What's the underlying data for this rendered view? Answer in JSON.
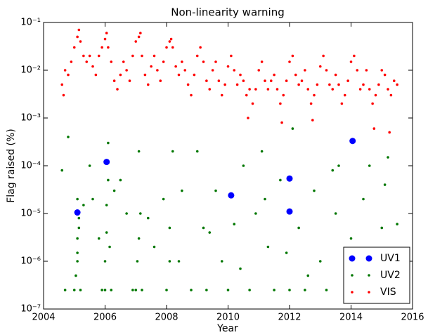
{
  "chart_data": {
    "type": "scatter",
    "title": "Non-linearity warning",
    "x_label": "Year",
    "y_label": "Flag raised (%)",
    "xlim": [
      2004,
      2016
    ],
    "xticks": [
      2004,
      2006,
      2008,
      2010,
      2012,
      2014,
      2016
    ],
    "ylim": [
      1e-07,
      0.1
    ],
    "log_y": true,
    "yticks": [
      {
        "value": 1e-07,
        "label": "10⁻⁷"
      },
      {
        "value": 1e-06,
        "label": "10⁻⁶"
      },
      {
        "value": 1e-05,
        "label": "10⁻⁵"
      },
      {
        "value": 0.0001,
        "label": "10⁻⁴"
      },
      {
        "value": 0.001,
        "label": "10⁻³"
      },
      {
        "value": 0.01,
        "label": "10⁻²"
      },
      {
        "value": 0.1,
        "label": "10⁻¹"
      }
    ],
    "legend": "lower right",
    "series": [
      {
        "name": "UV1",
        "color": "#0000ff",
        "marker_size": 4.5,
        "x": [
          2005.1,
          2006.05,
          2010.1,
          2012.0,
          2012.0,
          2014.05
        ],
        "values": [
          1.05e-05,
          0.00012,
          2.4e-05,
          5.4e-05,
          1.1e-05,
          0.00033
        ]
      },
      {
        "name": "UV2",
        "color": "#007700",
        "marker_size": 1.8,
        "x": [
          2004.6,
          2004.7,
          2004.8,
          2005.0,
          2005.05,
          2005.1,
          2005.1,
          2005.15,
          2005.1,
          2005.2,
          2005.1,
          2005.15,
          2005.5,
          2005.6,
          2005.8,
          2005.9,
          2006.0,
          2006.0,
          2006.05,
          2006.05,
          2006.1,
          2006.1,
          2006.15,
          2006.2,
          2006.5,
          2006.7,
          2006.9,
          2007.0,
          2007.05,
          2007.1,
          2007.1,
          2007.15,
          2007.2,
          2007.6,
          2007.9,
          2008.0,
          2008.1,
          2008.1,
          2008.2,
          2008.5,
          2008.8,
          2009.0,
          2009.2,
          2009.3,
          2009.6,
          2009.8,
          2010.0,
          2010.2,
          2010.5,
          2010.7,
          2010.9,
          2011.1,
          2011.3,
          2011.5,
          2011.7,
          2011.9,
          2012.0,
          2012.1,
          2012.3,
          2012.5,
          2012.8,
          2013.0,
          2013.2,
          2013.4,
          2013.6,
          2013.8,
          2014.0,
          2014.2,
          2014.4,
          2014.6,
          2014.8,
          2015.0,
          2015.2,
          2015.4,
          2015.5,
          2005.3,
          2006.3,
          2007.4,
          2008.4,
          2009.4,
          2010.4,
          2011.2,
          2012.6,
          2013.5,
          2014.5,
          2015.1
        ],
        "values": [
          8e-05,
          2.5e-07,
          0.0004,
          2.5e-07,
          5e-07,
          1e-06,
          3e-06,
          5e-06,
          2e-05,
          2.5e-07,
          1.5e-06,
          8e-06,
          0.0001,
          2e-05,
          3e-06,
          2.5e-07,
          2.5e-07,
          1e-06,
          4e-06,
          1.5e-05,
          5e-05,
          0.0003,
          2e-06,
          2.5e-07,
          5e-05,
          1e-05,
          2.5e-07,
          2.5e-07,
          1e-06,
          3e-06,
          0.0002,
          1e-05,
          2.5e-07,
          2e-06,
          2e-05,
          2.5e-07,
          1e-06,
          5e-06,
          0.0002,
          3e-05,
          2.5e-07,
          0.0002,
          5e-06,
          2.5e-07,
          3e-05,
          1e-06,
          2.5e-07,
          6e-06,
          0.0001,
          2.5e-07,
          1e-05,
          0.0002,
          2e-06,
          2.5e-07,
          5e-05,
          1.5e-06,
          2.5e-07,
          0.0006,
          5e-06,
          2.5e-07,
          3e-05,
          1e-06,
          2.5e-07,
          8e-05,
          0.0001,
          2.5e-07,
          3e-06,
          2.5e-07,
          2e-05,
          0.0001,
          2.5e-07,
          5e-06,
          0.00015,
          1e-06,
          6e-06,
          1.5e-05,
          3e-05,
          8e-06,
          1e-06,
          4e-06,
          7e-07,
          2e-05,
          5e-07,
          1e-05,
          7e-07,
          4e-05
        ]
      },
      {
        "name": "VIS",
        "color": "#ff0000",
        "marker_size": 1.8,
        "x": [
          2004.6,
          2004.7,
          2004.8,
          2004.9,
          2005.0,
          2005.1,
          2005.2,
          2005.3,
          2005.4,
          2005.5,
          2005.6,
          2005.7,
          2005.8,
          2005.9,
          2006.0,
          2006.1,
          2006.2,
          2006.3,
          2006.4,
          2006.5,
          2006.6,
          2006.7,
          2006.8,
          2006.9,
          2007.0,
          2007.1,
          2007.2,
          2007.3,
          2007.4,
          2007.5,
          2007.6,
          2007.7,
          2007.8,
          2007.9,
          2008.0,
          2008.1,
          2008.2,
          2008.3,
          2008.4,
          2008.5,
          2008.6,
          2008.7,
          2008.8,
          2008.9,
          2009.0,
          2009.1,
          2009.2,
          2009.3,
          2009.4,
          2009.5,
          2009.6,
          2009.7,
          2009.8,
          2009.9,
          2010.0,
          2010.1,
          2010.2,
          2010.3,
          2010.4,
          2010.5,
          2010.6,
          2010.7,
          2010.8,
          2010.9,
          2011.0,
          2011.1,
          2011.2,
          2011.3,
          2011.4,
          2011.5,
          2011.6,
          2011.7,
          2011.8,
          2011.9,
          2012.0,
          2012.1,
          2012.2,
          2012.3,
          2012.4,
          2012.5,
          2012.6,
          2012.7,
          2012.8,
          2012.9,
          2013.0,
          2013.1,
          2013.2,
          2013.3,
          2013.4,
          2013.5,
          2013.6,
          2013.7,
          2013.8,
          2013.9,
          2014.0,
          2014.1,
          2014.2,
          2014.3,
          2014.4,
          2014.5,
          2014.6,
          2014.7,
          2014.8,
          2014.9,
          2015.0,
          2015.1,
          2015.2,
          2015.3,
          2015.4,
          2015.5,
          2004.65,
          2005.15,
          2006.05,
          2007.15,
          2008.15,
          2010.65,
          2011.75,
          2012.75,
          2014.75,
          2015.25
        ],
        "values": [
          0.005,
          0.01,
          0.008,
          0.015,
          0.03,
          0.05,
          0.04,
          0.02,
          0.015,
          0.02,
          0.012,
          0.008,
          0.02,
          0.03,
          0.045,
          0.03,
          0.015,
          0.006,
          0.004,
          0.008,
          0.015,
          0.01,
          0.006,
          0.02,
          0.04,
          0.05,
          0.02,
          0.008,
          0.005,
          0.012,
          0.02,
          0.01,
          0.006,
          0.015,
          0.03,
          0.04,
          0.03,
          0.012,
          0.008,
          0.015,
          0.01,
          0.005,
          0.003,
          0.008,
          0.02,
          0.03,
          0.015,
          0.006,
          0.004,
          0.01,
          0.015,
          0.006,
          0.003,
          0.005,
          0.012,
          0.02,
          0.01,
          0.005,
          0.008,
          0.006,
          0.003,
          0.004,
          0.002,
          0.004,
          0.01,
          0.015,
          0.006,
          0.004,
          0.006,
          0.008,
          0.004,
          0.002,
          0.003,
          0.006,
          0.015,
          0.02,
          0.008,
          0.005,
          0.006,
          0.01,
          0.004,
          0.002,
          0.003,
          0.005,
          0.012,
          0.02,
          0.01,
          0.005,
          0.004,
          0.008,
          0.005,
          0.002,
          0.003,
          0.006,
          0.015,
          0.02,
          0.01,
          0.004,
          0.005,
          0.01,
          0.004,
          0.002,
          0.003,
          0.005,
          0.01,
          0.008,
          0.004,
          0.003,
          0.006,
          0.005,
          0.003,
          0.07,
          0.06,
          0.06,
          0.045,
          0.001,
          0.0008,
          0.0009,
          0.0006,
          0.0005
        ]
      }
    ]
  }
}
